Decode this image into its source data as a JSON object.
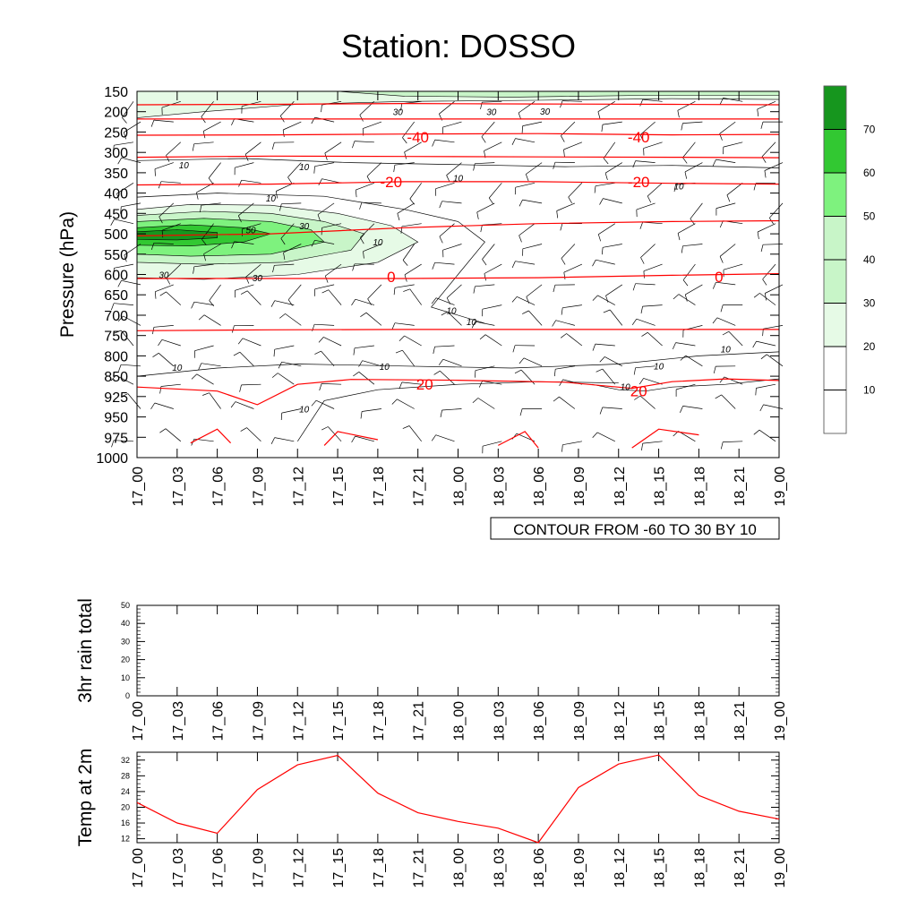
{
  "title": "Station: DOSSO",
  "colors": {
    "rh_fill": [
      "#ffffff",
      "#ffffff",
      "#e6fae6",
      "#c8f5c8",
      "#7ef27e",
      "#32c832",
      "#16961e"
    ],
    "temperature_contour": "#ff0000",
    "rh_contour": "#000000",
    "wind_barb": "#000000",
    "t2m_line": "#ff0000"
  },
  "chart_data": [
    {
      "type": "heatmap",
      "name": "rh_profile",
      "ylabel": "Pressure (hPa)",
      "y_ticks": [
        150,
        200,
        250,
        300,
        350,
        400,
        450,
        500,
        550,
        600,
        650,
        700,
        750,
        800,
        850,
        925,
        950,
        975,
        1000
      ],
      "x_ticks": [
        "17_00",
        "17_03",
        "17_06",
        "17_09",
        "17_12",
        "17_15",
        "17_18",
        "17_21",
        "18_00",
        "18_03",
        "18_06",
        "18_09",
        "18_12",
        "18_15",
        "18_18",
        "18_21",
        "19_00"
      ],
      "colorbar": {
        "levels": [
          10,
          20,
          30,
          40,
          50,
          60,
          70
        ],
        "labels": [
          "10",
          "20",
          "30",
          "40",
          "50",
          "60",
          "70"
        ]
      },
      "rh_labels": [
        {
          "t": 19.5,
          "p": 200,
          "v": "30"
        },
        {
          "t": 26.5,
          "p": 200,
          "v": "30"
        },
        {
          "t": 30.5,
          "p": 198,
          "v": "30"
        },
        {
          "t": 3.5,
          "p": 330,
          "v": "10"
        },
        {
          "t": 12.5,
          "p": 335,
          "v": "10"
        },
        {
          "t": 24,
          "p": 362,
          "v": "10"
        },
        {
          "t": 40.5,
          "p": 382,
          "v": "10"
        },
        {
          "t": 10,
          "p": 412,
          "v": "10"
        },
        {
          "t": 8.5,
          "p": 490,
          "v": "50"
        },
        {
          "t": 12.5,
          "p": 480,
          "v": "30"
        },
        {
          "t": 18,
          "p": 520,
          "v": "10"
        },
        {
          "t": 2,
          "p": 600,
          "v": "30"
        },
        {
          "t": 9,
          "p": 608,
          "v": "30"
        },
        {
          "t": 23.5,
          "p": 688,
          "v": "10"
        },
        {
          "t": 25,
          "p": 715,
          "v": "10"
        },
        {
          "t": 3,
          "p": 828,
          "v": "10"
        },
        {
          "t": 18.5,
          "p": 826,
          "v": "10"
        },
        {
          "t": 39,
          "p": 824,
          "v": "10"
        },
        {
          "t": 36.5,
          "p": 888,
          "v": "10"
        },
        {
          "t": 44,
          "p": 783,
          "v": "10"
        },
        {
          "t": 12.5,
          "p": 940,
          "v": "10"
        }
      ],
      "temperature_labels": [
        {
          "t": 21,
          "p": 262,
          "v": "-40"
        },
        {
          "t": 37.5,
          "p": 262,
          "v": "-40"
        },
        {
          "t": 19,
          "p": 372,
          "v": "-20"
        },
        {
          "t": 37.5,
          "p": 372,
          "v": "-20"
        },
        {
          "t": 19,
          "p": 605,
          "v": "0"
        },
        {
          "t": 43.5,
          "p": 605,
          "v": "0"
        },
        {
          "t": 21.5,
          "p": 880,
          "v": "20"
        },
        {
          "t": 37.5,
          "p": 905,
          "v": "20"
        }
      ],
      "footer_text": "CONTOUR FROM -60 TO 30 BY 10"
    },
    {
      "type": "bar",
      "name": "rain",
      "ylabel": "3hr rain total",
      "ylim": [
        0,
        50
      ],
      "y_ticks": [
        "0",
        "10",
        "20",
        "30",
        "40",
        "50"
      ],
      "categories": [
        "17_00",
        "17_03",
        "17_06",
        "17_09",
        "17_12",
        "17_15",
        "17_18",
        "17_21",
        "18_00",
        "18_03",
        "18_06",
        "18_09",
        "18_12",
        "18_15",
        "18_18",
        "18_21",
        "19_00"
      ],
      "values": [
        0,
        0,
        0,
        0,
        0,
        0,
        0,
        0,
        0,
        0,
        0,
        0,
        0,
        0,
        0,
        0,
        0
      ]
    },
    {
      "type": "line",
      "name": "t2m",
      "ylabel": "Temp at 2m",
      "ylim": [
        11,
        34
      ],
      "y_ticks": [
        "12",
        "16",
        "20",
        "24",
        "28",
        "32"
      ],
      "categories": [
        "17_00",
        "17_03",
        "17_06",
        "17_09",
        "17_12",
        "17_15",
        "17_18",
        "17_21",
        "18_00",
        "18_03",
        "18_06",
        "18_09",
        "18_12",
        "18_15",
        "18_18",
        "18_21",
        "19_00"
      ],
      "values": [
        21.2,
        16,
        13.4,
        24.5,
        30.8,
        33.2,
        23.6,
        18.6,
        16.4,
        14.7,
        11.0,
        25.0,
        31.0,
        33.3,
        23.0,
        19.0,
        17.0
      ]
    }
  ]
}
